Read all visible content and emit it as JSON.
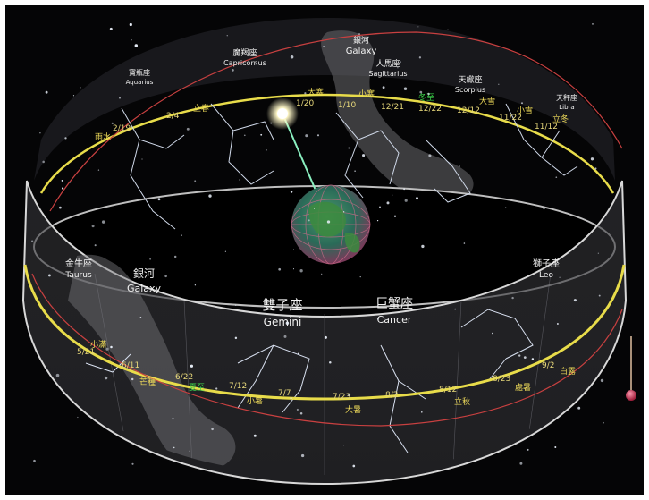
{
  "constellations_back": [
    {
      "cn": "魔羯座",
      "en": "Capricornus"
    },
    {
      "cn": "寶瓶座",
      "en": "Aquarius"
    },
    {
      "cn": "人馬座",
      "en": "Sagittarius"
    },
    {
      "cn": "天蠍座",
      "en": "Scorpius"
    },
    {
      "cn": "天秤座",
      "en": "Libra"
    }
  ],
  "constellations_front": [
    {
      "cn": "雙子座",
      "en": "Gemini"
    },
    {
      "cn": "巨蟹座",
      "en": "Cancer"
    },
    {
      "cn": "金牛座",
      "en": "Taurus"
    },
    {
      "cn": "獅子座",
      "en": "Leo"
    }
  ],
  "galaxy_back": {
    "cn": "銀河",
    "en": "Galaxy"
  },
  "galaxy_front": {
    "cn": "銀河",
    "en": "Galaxy"
  },
  "ecliptic_dates_back": [
    "1/20",
    "1/10",
    "12/21",
    "12/22",
    "12/12",
    "11/22",
    "11/12",
    "2/4",
    "2/19"
  ],
  "ecliptic_terms_back": [
    "大寒",
    "小寒",
    "冬至",
    "大雪",
    "小雪",
    "立冬",
    "雨水",
    "立春"
  ],
  "ecliptic_term_green_back": "冬至",
  "ecliptic_dates_front": [
    "6/11",
    "6/22",
    "7/12",
    "7/7",
    "7/23",
    "8/2",
    "8/12",
    "8/23",
    "9/2",
    "5/21"
  ],
  "ecliptic_terms_front": [
    "芒種",
    "夏至",
    "小暑",
    "大暑",
    "立秋",
    "處暑",
    "白露",
    "小滿"
  ],
  "ecliptic_term_green_front": "夏至",
  "colors": {
    "background": "#050506",
    "ring": "#d8d8d8",
    "ecliptic": "#e8dc4a",
    "equator": "#c84040",
    "sun": "#ffffe0",
    "earth_green": "#2f8a4c",
    "pendulum": "#e04060"
  }
}
